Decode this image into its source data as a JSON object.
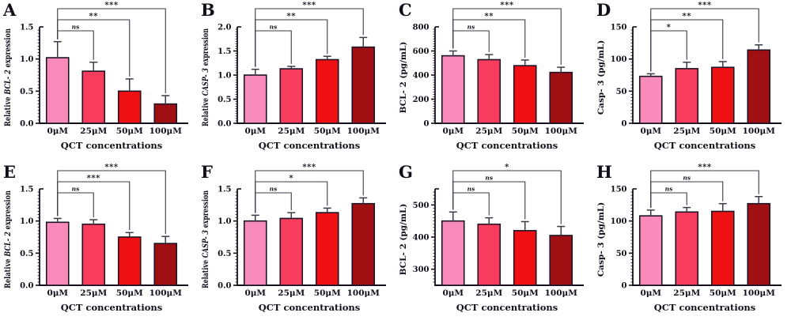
{
  "figure": {
    "xlabel": "QCT concentrations",
    "categories": [
      "0μM",
      "25μM",
      "50μM",
      "100μM"
    ],
    "bar_colors": [
      "#F98BBB",
      "#F83C5D",
      "#EE1013",
      "#A01013"
    ],
    "bar_border_color": "#1E1426",
    "axis_color": "#150F1C",
    "annotation_color": "#3C3C46",
    "text_color": "#140E1A",
    "background_color": "#FFFFFF"
  },
  "chart_data": [
    {
      "panel": "A",
      "type": "bar",
      "ylabel": "Relative BCL- 2 expression",
      "ylabel_parts": [
        {
          "t": "Relative ",
          "i": false
        },
        {
          "t": "BCL- 2",
          "i": true
        },
        {
          "t": " expression",
          "i": false
        }
      ],
      "ymin": 0,
      "ymax": 1.5,
      "minor_step": 0.05,
      "ticks": [
        {
          "v": 0.0,
          "label": "0.0"
        },
        {
          "v": 0.5,
          "label": "0.5"
        },
        {
          "v": 1.0,
          "label": "1.0"
        },
        {
          "v": 1.5,
          "label": "1.5"
        }
      ],
      "values": [
        1.02,
        0.81,
        0.5,
        0.3
      ],
      "errors": [
        0.25,
        0.14,
        0.19,
        0.13
      ],
      "significance": [
        {
          "to": 1,
          "label": "ns"
        },
        {
          "to": 2,
          "label": "**"
        },
        {
          "to": 3,
          "label": "***"
        }
      ]
    },
    {
      "panel": "B",
      "type": "bar",
      "ylabel": "Relative CASP- 3 expression",
      "ylabel_parts": [
        {
          "t": "Relative ",
          "i": false
        },
        {
          "t": "CASP- 3",
          "i": true
        },
        {
          "t": " expression",
          "i": false
        }
      ],
      "ymin": 0,
      "ymax": 2.0,
      "minor_step": 0.05,
      "ticks": [
        {
          "v": 0.0,
          "label": "0.0"
        },
        {
          "v": 0.5,
          "label": "0.5"
        },
        {
          "v": 1.0,
          "label": "1.0"
        },
        {
          "v": 1.5,
          "label": "1.5"
        },
        {
          "v": 2.0,
          "label": "2.0"
        }
      ],
      "values": [
        1.0,
        1.13,
        1.32,
        1.58
      ],
      "errors": [
        0.12,
        0.05,
        0.07,
        0.2
      ],
      "significance": [
        {
          "to": 1,
          "label": "ns"
        },
        {
          "to": 2,
          "label": "**"
        },
        {
          "to": 3,
          "label": "***"
        }
      ]
    },
    {
      "panel": "C",
      "type": "bar",
      "ylabel": "BCL- 2 (pg/mL)",
      "ylabel_parts": [
        {
          "t": "BCL- 2 (pg/mL)",
          "i": false
        }
      ],
      "ymin": 0,
      "ymax": 800,
      "minor_step": 20,
      "ticks": [
        {
          "v": 0,
          "label": "0"
        },
        {
          "v": 200,
          "label": "200"
        },
        {
          "v": 400,
          "label": "400"
        },
        {
          "v": 600,
          "label": "600"
        },
        {
          "v": 800,
          "label": "800"
        }
      ],
      "values": [
        560,
        528,
        478,
        422
      ],
      "errors": [
        40,
        42,
        47,
        43
      ],
      "significance": [
        {
          "to": 1,
          "label": "ns"
        },
        {
          "to": 2,
          "label": "**"
        },
        {
          "to": 3,
          "label": "***"
        }
      ]
    },
    {
      "panel": "D",
      "type": "bar",
      "ylabel": "Casp- 3 (pg/mL)",
      "ylabel_parts": [
        {
          "t": "Casp- 3 (pg/mL)",
          "i": false
        }
      ],
      "ymin": 0,
      "ymax": 150,
      "minor_step": 5,
      "ticks": [
        {
          "v": 0,
          "label": "0"
        },
        {
          "v": 50,
          "label": "50"
        },
        {
          "v": 100,
          "label": "100"
        },
        {
          "v": 150,
          "label": "150"
        }
      ],
      "values": [
        73,
        85,
        87,
        114
      ],
      "errors": [
        4,
        10,
        9,
        8
      ],
      "significance": [
        {
          "to": 1,
          "label": "*"
        },
        {
          "to": 2,
          "label": "**"
        },
        {
          "to": 3,
          "label": "***"
        }
      ]
    },
    {
      "panel": "E",
      "type": "bar",
      "ylabel": "Relative BCL- 2 expression",
      "ylabel_parts": [
        {
          "t": "Relative ",
          "i": false
        },
        {
          "t": "BCL- 2",
          "i": true
        },
        {
          "t": " expression",
          "i": false
        }
      ],
      "ymin": 0,
      "ymax": 1.5,
      "minor_step": 0.05,
      "ticks": [
        {
          "v": 0.0,
          "label": "0.0"
        },
        {
          "v": 0.5,
          "label": "0.5"
        },
        {
          "v": 1.0,
          "label": "1.0"
        },
        {
          "v": 1.5,
          "label": "1.5"
        }
      ],
      "values": [
        0.98,
        0.95,
        0.75,
        0.65
      ],
      "errors": [
        0.06,
        0.07,
        0.07,
        0.11
      ],
      "significance": [
        {
          "to": 1,
          "label": "ns"
        },
        {
          "to": 2,
          "label": "***"
        },
        {
          "to": 3,
          "label": "***"
        }
      ]
    },
    {
      "panel": "F",
      "type": "bar",
      "ylabel": "Relative CASP- 3 expression",
      "ylabel_parts": [
        {
          "t": "Relative ",
          "i": false
        },
        {
          "t": "CASP- 3",
          "i": true
        },
        {
          "t": " expression",
          "i": false
        }
      ],
      "ymin": 0,
      "ymax": 1.5,
      "minor_step": 0.05,
      "ticks": [
        {
          "v": 0.0,
          "label": "0.0"
        },
        {
          "v": 0.5,
          "label": "0.5"
        },
        {
          "v": 1.0,
          "label": "1.0"
        },
        {
          "v": 1.5,
          "label": "1.5"
        }
      ],
      "values": [
        1.0,
        1.04,
        1.13,
        1.27
      ],
      "errors": [
        0.09,
        0.09,
        0.07,
        0.09
      ],
      "significance": [
        {
          "to": 1,
          "label": "ns"
        },
        {
          "to": 2,
          "label": "*"
        },
        {
          "to": 3,
          "label": "***"
        }
      ]
    },
    {
      "panel": "G",
      "type": "bar",
      "ylabel": "BCL- 2 (pg/mL)",
      "ylabel_parts": [
        {
          "t": "BCL- 2 (pg/mL)",
          "i": false
        }
      ],
      "ymin": 250,
      "ymax": 550,
      "minor_step": 10,
      "ticks": [
        {
          "v": 300,
          "label": "300"
        },
        {
          "v": 400,
          "label": "400"
        },
        {
          "v": 500,
          "label": "500"
        }
      ],
      "values": [
        450,
        440,
        420,
        405
      ],
      "errors": [
        28,
        20,
        28,
        28
      ],
      "significance": [
        {
          "to": 1,
          "label": "ns"
        },
        {
          "to": 2,
          "label": "ns"
        },
        {
          "to": 3,
          "label": "*"
        }
      ]
    },
    {
      "panel": "H",
      "type": "bar",
      "ylabel": "Casp- 3 (pg/mL)",
      "ylabel_parts": [
        {
          "t": "Casp- 3 (pg/mL)",
          "i": false
        }
      ],
      "ymin": 0,
      "ymax": 150,
      "minor_step": 5,
      "ticks": [
        {
          "v": 0,
          "label": "0"
        },
        {
          "v": 50,
          "label": "50"
        },
        {
          "v": 100,
          "label": "100"
        },
        {
          "v": 150,
          "label": "150"
        }
      ],
      "values": [
        108,
        114,
        115,
        127
      ],
      "errors": [
        9,
        7,
        12,
        11
      ],
      "significance": [
        {
          "to": 1,
          "label": "ns"
        },
        {
          "to": 2,
          "label": "ns"
        },
        {
          "to": 3,
          "label": "***"
        }
      ]
    }
  ]
}
